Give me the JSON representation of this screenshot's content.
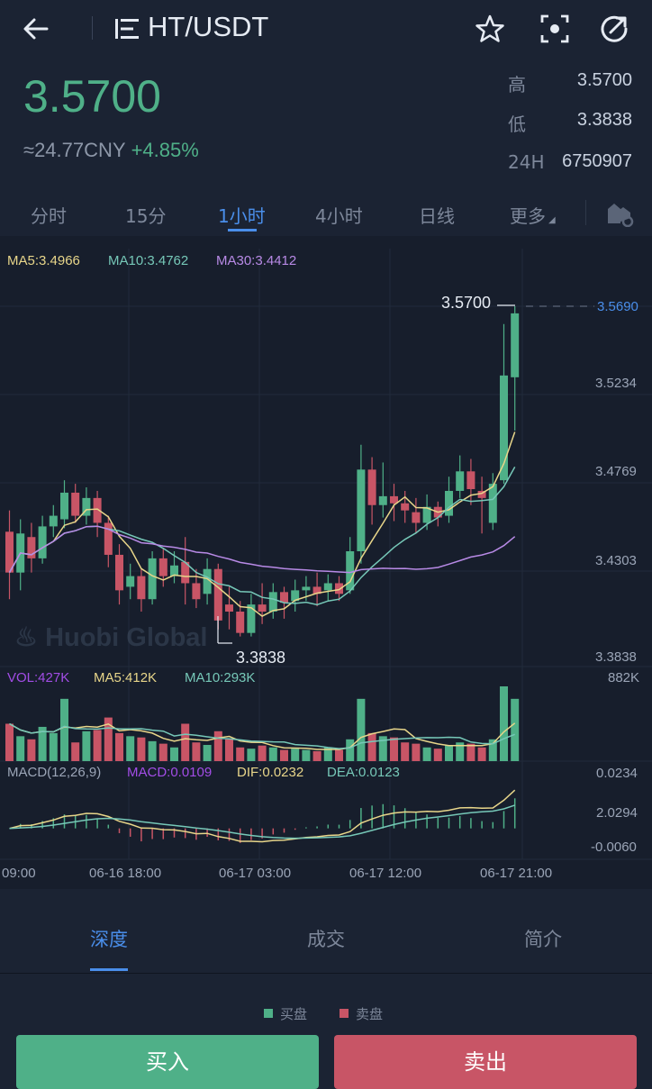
{
  "header": {
    "pair": "HT/USDT",
    "icons": [
      "back-arrow-icon",
      "pair-menu-icon",
      "star-icon",
      "scan-icon",
      "share-icon"
    ]
  },
  "ticker": {
    "price": "3.5700",
    "cny": "≈24.77CNY",
    "change": "+4.85%",
    "high_label": "高",
    "high": "3.5700",
    "low_label": "低",
    "low": "3.3838",
    "vol_label": "24H",
    "vol": "6750907"
  },
  "intervals": {
    "items": [
      "分时",
      "15分",
      "1小时",
      "4小时",
      "日线",
      "更多"
    ],
    "active": "1小时"
  },
  "chart_data": {
    "type": "candlestick",
    "indicators": {
      "ma5": "MA5:3.4966",
      "ma10": "MA10:3.4762",
      "ma30": "MA30:3.4412"
    },
    "price_axis": [
      "3.5690",
      "3.5234",
      "3.4769",
      "3.4303",
      "3.3838"
    ],
    "max_label": "3.5700",
    "min_label": "3.3838",
    "watermark": "Huobi Global",
    "volume": {
      "vol": "VOL:427K",
      "ma5": "MA5:412K",
      "ma10": "MA10:293K",
      "axis_max": "882K"
    },
    "macd": {
      "params": "MACD(12,26,9)",
      "macd": "MACD:0.0109",
      "dif": "DIF:0.0232",
      "dea": "DEA:0.0123",
      "axis": [
        "0.0234",
        "2.0294",
        "-0.0060"
      ]
    },
    "time_labels": [
      "09:00",
      "06-16 18:00",
      "06-17 03:00",
      "06-17 12:00",
      "06-17 21:00"
    ],
    "candles": [
      [
        3.443,
        3.42,
        3.455,
        3.405
      ],
      [
        3.42,
        3.442,
        3.45,
        3.41
      ],
      [
        3.44,
        3.428,
        3.448,
        3.42
      ],
      [
        3.428,
        3.446,
        3.452,
        3.425
      ],
      [
        3.446,
        3.452,
        3.458,
        3.44
      ],
      [
        3.45,
        3.465,
        3.472,
        3.445
      ],
      [
        3.465,
        3.452,
        3.47,
        3.448
      ],
      [
        3.452,
        3.462,
        3.468,
        3.447
      ],
      [
        3.462,
        3.448,
        3.466,
        3.44
      ],
      [
        3.448,
        3.43,
        3.452,
        3.423
      ],
      [
        3.43,
        3.41,
        3.436,
        3.402
      ],
      [
        3.412,
        3.418,
        3.425,
        3.405
      ],
      [
        3.418,
        3.405,
        3.422,
        3.398
      ],
      [
        3.405,
        3.428,
        3.432,
        3.402
      ],
      [
        3.428,
        3.418,
        3.434,
        3.412
      ],
      [
        3.418,
        3.424,
        3.432,
        3.414
      ],
      [
        3.426,
        3.414,
        3.44,
        3.402
      ],
      [
        3.414,
        3.405,
        3.422,
        3.4
      ],
      [
        3.408,
        3.422,
        3.428,
        3.402
      ],
      [
        3.422,
        3.393,
        3.425,
        3.388
      ],
      [
        3.402,
        3.398,
        3.412,
        3.388
      ],
      [
        3.398,
        3.386,
        3.404,
        3.384
      ],
      [
        3.386,
        3.402,
        3.408,
        3.384
      ],
      [
        3.402,
        3.398,
        3.414,
        3.391
      ],
      [
        3.398,
        3.409,
        3.414,
        3.394
      ],
      [
        3.409,
        3.403,
        3.412,
        3.394
      ],
      [
        3.404,
        3.41,
        3.416,
        3.398
      ],
      [
        3.41,
        3.412,
        3.418,
        3.404
      ],
      [
        3.412,
        3.408,
        3.42,
        3.401
      ],
      [
        3.41,
        3.414,
        3.419,
        3.404
      ],
      [
        3.414,
        3.408,
        3.418,
        3.404
      ],
      [
        3.41,
        3.432,
        3.44,
        3.408
      ],
      [
        3.432,
        3.478,
        3.492,
        3.425
      ],
      [
        3.478,
        3.458,
        3.485,
        3.447
      ],
      [
        3.458,
        3.463,
        3.482,
        3.451
      ],
      [
        3.463,
        3.459,
        3.47,
        3.449
      ],
      [
        3.459,
        3.455,
        3.466,
        3.448
      ],
      [
        3.454,
        3.448,
        3.462,
        3.442
      ],
      [
        3.448,
        3.457,
        3.464,
        3.444
      ],
      [
        3.457,
        3.451,
        3.46,
        3.446
      ],
      [
        3.452,
        3.466,
        3.474,
        3.448
      ],
      [
        3.466,
        3.477,
        3.486,
        3.462
      ],
      [
        3.477,
        3.467,
        3.484,
        3.458
      ],
      [
        3.466,
        3.462,
        3.474,
        3.442
      ],
      [
        3.448,
        3.47,
        3.476,
        3.444
      ],
      [
        3.472,
        3.531,
        3.56,
        3.47
      ],
      [
        3.53,
        3.566,
        3.57,
        3.5
      ]
    ],
    "volumes": [
      60,
      40,
      35,
      55,
      45,
      100,
      30,
      48,
      50,
      70,
      45,
      40,
      38,
      32,
      28,
      22,
      60,
      30,
      26,
      48,
      35,
      22,
      20,
      25,
      22,
      18,
      20,
      18,
      16,
      22,
      18,
      35,
      100,
      45,
      40,
      38,
      30,
      28,
      22,
      20,
      25,
      30,
      28,
      22,
      35,
      120,
      100
    ]
  },
  "detail_tabs": {
    "items": [
      "深度",
      "成交",
      "简介"
    ],
    "active": "深度"
  },
  "depth_legend": {
    "buy": "买盘",
    "sell": "卖盘"
  },
  "actions": {
    "buy": "买入",
    "sell": "卖出"
  },
  "colors": {
    "up": "#4fb088",
    "down": "#c85566",
    "accent": "#4a8eea",
    "ma5": "#e8d68a",
    "ma10": "#76c8b8",
    "ma30": "#b88ae6"
  }
}
